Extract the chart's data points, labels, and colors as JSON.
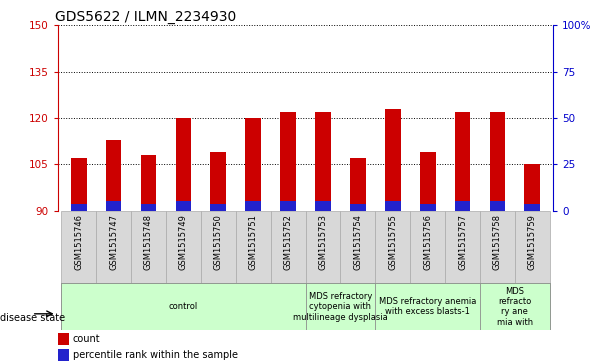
{
  "title": "GDS5622 / ILMN_2234930",
  "samples": [
    "GSM1515746",
    "GSM1515747",
    "GSM1515748",
    "GSM1515749",
    "GSM1515750",
    "GSM1515751",
    "GSM1515752",
    "GSM1515753",
    "GSM1515754",
    "GSM1515755",
    "GSM1515756",
    "GSM1515757",
    "GSM1515758",
    "GSM1515759"
  ],
  "count_values": [
    107,
    113,
    108,
    120,
    109,
    120,
    122,
    122,
    107,
    123,
    109,
    122,
    122,
    105
  ],
  "percentile_values": [
    2,
    3,
    2,
    3,
    2,
    3,
    3,
    3,
    2,
    3,
    2,
    3,
    3,
    2
  ],
  "ymin": 90,
  "ymax": 150,
  "yticks_left": [
    90,
    105,
    120,
    135,
    150
  ],
  "yticks_right_labels": [
    "0",
    "25",
    "50",
    "75",
    "100%"
  ],
  "yticks_right_positions": [
    90,
    105,
    120,
    135,
    150
  ],
  "bar_color_red": "#cc0000",
  "bar_color_blue": "#2222cc",
  "grid_color": "#000000",
  "tick_color_left": "#cc0000",
  "tick_color_right": "#0000cc",
  "disease_groups": [
    {
      "label": "control",
      "start": 0,
      "end": 7
    },
    {
      "label": "MDS refractory\ncytopenia with\nmultilineage dysplasia",
      "start": 7,
      "end": 9
    },
    {
      "label": "MDS refractory anemia\nwith excess blasts-1",
      "start": 9,
      "end": 12
    },
    {
      "label": "MDS\nrefracto\nry ane\nmia with",
      "start": 12,
      "end": 14
    }
  ],
  "disease_group_color": "#ccffcc",
  "disease_group_border": "#888888",
  "disease_state_label": "disease state",
  "legend_count_label": "count",
  "legend_percentile_label": "percentile rank within the sample",
  "bar_width": 0.45,
  "bg_color": "#ffffff",
  "plot_bg_color": "#ffffff",
  "xtick_bg_color": "#d8d8d8",
  "title_fontsize": 10,
  "tick_fontsize": 7.5,
  "sample_fontsize": 6,
  "disease_fontsize": 6,
  "legend_fontsize": 7
}
